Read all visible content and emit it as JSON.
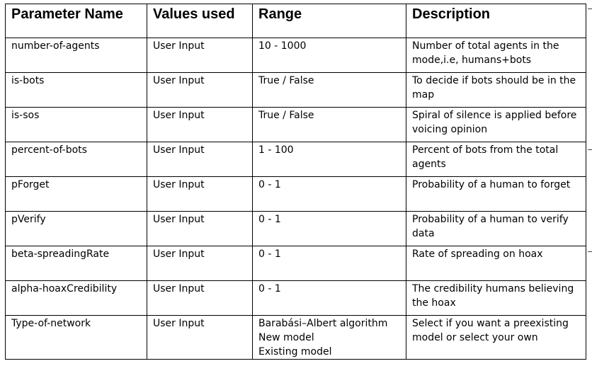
{
  "table": {
    "headers": [
      "Parameter Name",
      "Values used",
      "Range",
      "Description"
    ],
    "rows": [
      {
        "name": "number-of-agents",
        "values": "User Input",
        "range": [
          "10 - 1000"
        ],
        "description": "Number of total agents in the mode,i.e, humans+bots"
      },
      {
        "name": "is-bots",
        "values": "User Input",
        "range": [
          "True / False"
        ],
        "description": "To decide if bots should be in the map"
      },
      {
        "name": "is-sos",
        "values": "User Input",
        "range": [
          "True / False"
        ],
        "description": "Spiral of silence is applied before voicing opinion"
      },
      {
        "name": "percent-of-bots",
        "values": "User Input",
        "range": [
          "1 - 100"
        ],
        "description": "Percent of bots from the total agents"
      },
      {
        "name": "pForget",
        "values": "User Input",
        "range": [
          "0 - 1"
        ],
        "description": "Probability of a human to forget"
      },
      {
        "name": "pVerify",
        "values": "User Input",
        "range": [
          "0 - 1"
        ],
        "description": "Probability of a human to verify data"
      },
      {
        "name": "beta-spreadingRate",
        "values": "User Input",
        "range": [
          "0 - 1"
        ],
        "description": "Rate of spreading on hoax"
      },
      {
        "name": "alpha-hoaxCredibility",
        "values": "User Input",
        "range": [
          "0 - 1"
        ],
        "description": "The credibility humans believing the hoax"
      },
      {
        "name": "Type-of-network",
        "values": "User Input",
        "range": [
          "Barabási–Albert algorithm",
          "New model",
          "Existing model"
        ],
        "description": "Select if you want a preexisting model or select your own"
      }
    ]
  }
}
